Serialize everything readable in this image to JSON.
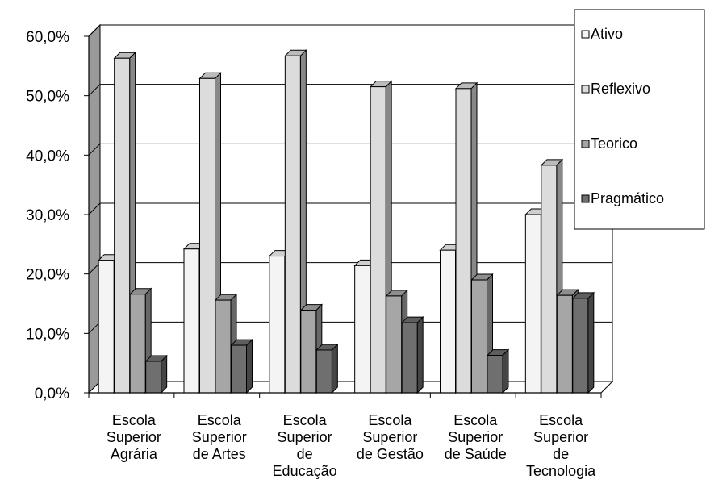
{
  "chart_data": {
    "type": "bar",
    "style": "3d-clustered-column",
    "y_tick_labels": [
      "0,0%",
      "10,0%",
      "20,0%",
      "30,0%",
      "40,0%",
      "50,0%",
      "60,0%"
    ],
    "ylim": [
      0,
      60
    ],
    "grid": true,
    "legend_position": "top-right",
    "categories": [
      [
        "Escola",
        "Superior",
        "Agrária"
      ],
      [
        "Escola",
        "Superior",
        "de Artes"
      ],
      [
        "Escola",
        "Superior",
        "de",
        "Educação"
      ],
      [
        "Escola",
        "Superior",
        "de Gestão"
      ],
      [
        "Escola",
        "Superior",
        "de Saúde"
      ],
      [
        "Escola",
        "Superior",
        "de",
        "Tecnologia"
      ]
    ],
    "series": [
      {
        "name": "Ativo",
        "color": "#f4f4f4",
        "values": [
          22.3,
          24.2,
          23.0,
          21.4,
          24.0,
          30.0
        ]
      },
      {
        "name": "Reflexivo",
        "color": "#dcdcdc",
        "values": [
          56.3,
          52.9,
          56.7,
          51.5,
          51.2,
          38.3
        ]
      },
      {
        "name": "Teorico",
        "color": "#a6a6a6",
        "values": [
          16.6,
          15.6,
          13.9,
          16.3,
          19.0,
          16.4
        ]
      },
      {
        "name": "Pragmático",
        "color": "#6f6f6f",
        "values": [
          5.3,
          8.0,
          7.2,
          11.8,
          6.3,
          15.9
        ]
      }
    ]
  }
}
